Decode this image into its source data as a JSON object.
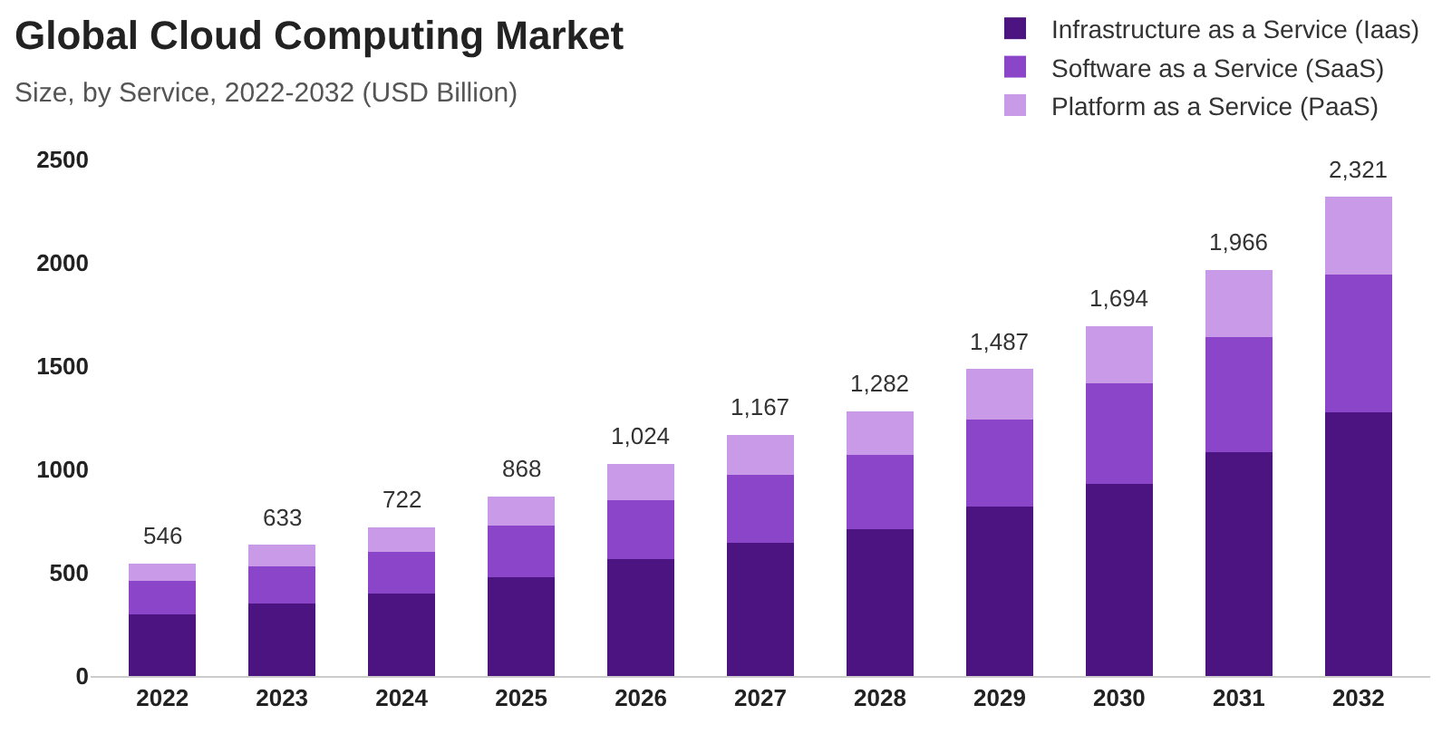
{
  "chart_data": {
    "type": "bar",
    "title": "Global Cloud Computing Market",
    "subtitle": "Size, by Service, 2022-2032 (USD Billion)",
    "categories": [
      "2022",
      "2023",
      "2024",
      "2025",
      "2026",
      "2027",
      "2028",
      "2029",
      "2030",
      "2031",
      "2032"
    ],
    "series": [
      {
        "name": "Infrastructure as a Service (Iaas)",
        "color": "#4b1480",
        "values": [
          300,
          350,
          400,
          480,
          565,
          645,
          710,
          820,
          930,
          1085,
          1275
        ]
      },
      {
        "name": "Software as a Service (SaaS)",
        "color": "#8b45c9",
        "values": [
          160,
          180,
          200,
          250,
          285,
          330,
          360,
          420,
          485,
          555,
          670
        ]
      },
      {
        "name": "Platform as a Service (PaaS)",
        "color": "#c99ae8",
        "values": [
          85,
          105,
          120,
          140,
          175,
          190,
          210,
          245,
          280,
          325,
          375
        ]
      }
    ],
    "stacked": true,
    "totals": [
      "546",
      "633",
      "722",
      "868",
      "1,024",
      "1,167",
      "1,282",
      "1,487",
      "1,694",
      "1,966",
      "2,321"
    ],
    "ylim": [
      0,
      2500
    ],
    "yticks": [
      0,
      500,
      1000,
      1500,
      2000,
      2500
    ],
    "grid": false,
    "legend": "top right"
  }
}
